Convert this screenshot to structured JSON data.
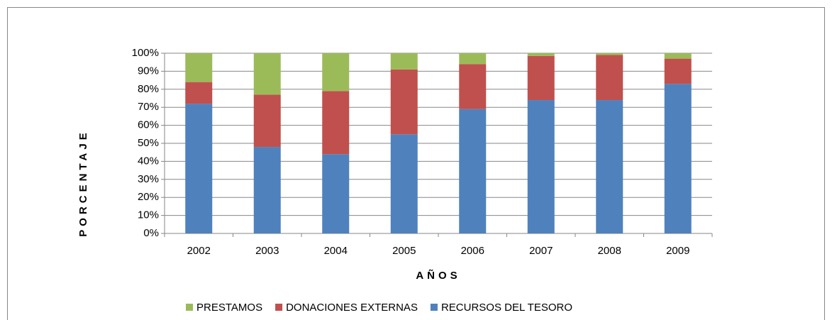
{
  "chart_data": {
    "type": "stacked_bar",
    "x_label": "AÑOS",
    "y_label": "PORCENTAJE",
    "categories": [
      "2002",
      "2003",
      "2004",
      "2005",
      "2006",
      "2007",
      "2008",
      "2009"
    ],
    "series": [
      {
        "name": "RECURSOS DEL TESORO",
        "color": "#4f81bd",
        "values": [
          72,
          48,
          44,
          55,
          69,
          74,
          74,
          83
        ]
      },
      {
        "name": "DONACIONES EXTERNAS",
        "color": "#c0504d",
        "values": [
          12,
          29,
          35,
          36,
          25,
          24.5,
          25,
          14
        ]
      },
      {
        "name": "PRESTAMOS",
        "color": "#9bbb59",
        "values": [
          16,
          23,
          21,
          9,
          6,
          1.5,
          1,
          3
        ]
      }
    ],
    "ylim": [
      0,
      100
    ],
    "yticks": [
      {
        "value": 0,
        "label": "0%"
      },
      {
        "value": 10,
        "label": "10%"
      },
      {
        "value": 20,
        "label": "20%"
      },
      {
        "value": 30,
        "label": "30%"
      },
      {
        "value": 40,
        "label": "40%"
      },
      {
        "value": 50,
        "label": "50%"
      },
      {
        "value": 60,
        "label": "60%"
      },
      {
        "value": 70,
        "label": "70%"
      },
      {
        "value": 80,
        "label": "80%"
      },
      {
        "value": 90,
        "label": "90%"
      },
      {
        "value": 100,
        "label": "100%"
      }
    ],
    "grid": true,
    "legend": "bottom"
  }
}
